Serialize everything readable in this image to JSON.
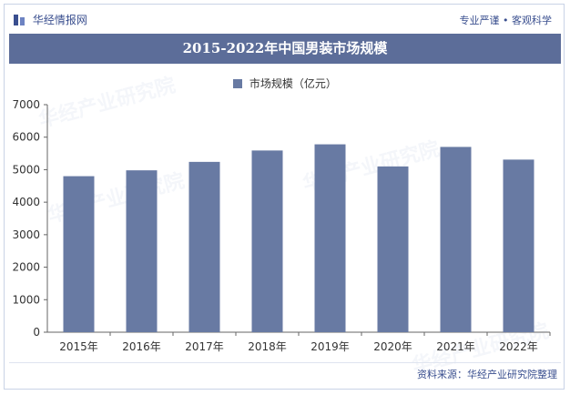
{
  "header": {
    "brand": "华经情报网",
    "tagline": "专业严谨 • 客观科学"
  },
  "chart_data": {
    "type": "bar",
    "title": "2015-2022年中国男装市场规模",
    "categories": [
      "2015年",
      "2016年",
      "2017年",
      "2018年",
      "2019年",
      "2020年",
      "2021年",
      "2022年"
    ],
    "series": [
      {
        "name": "市场规模（亿元）",
        "values": [
          4800,
          4980,
          5240,
          5590,
          5780,
          5100,
          5700,
          5310
        ]
      }
    ],
    "ylim": [
      0,
      7000
    ],
    "yticks": [
      0,
      1000,
      2000,
      3000,
      4000,
      5000,
      6000,
      7000
    ],
    "grid": false,
    "legend_position": "top-center",
    "colors": {
      "bar": "#687aa3",
      "title_bg": "#5c6d99",
      "brand": "#3a4f8f"
    }
  },
  "footer": {
    "source": "资料来源：华经产业研究院整理"
  },
  "watermark_text": "华经产业研究院"
}
